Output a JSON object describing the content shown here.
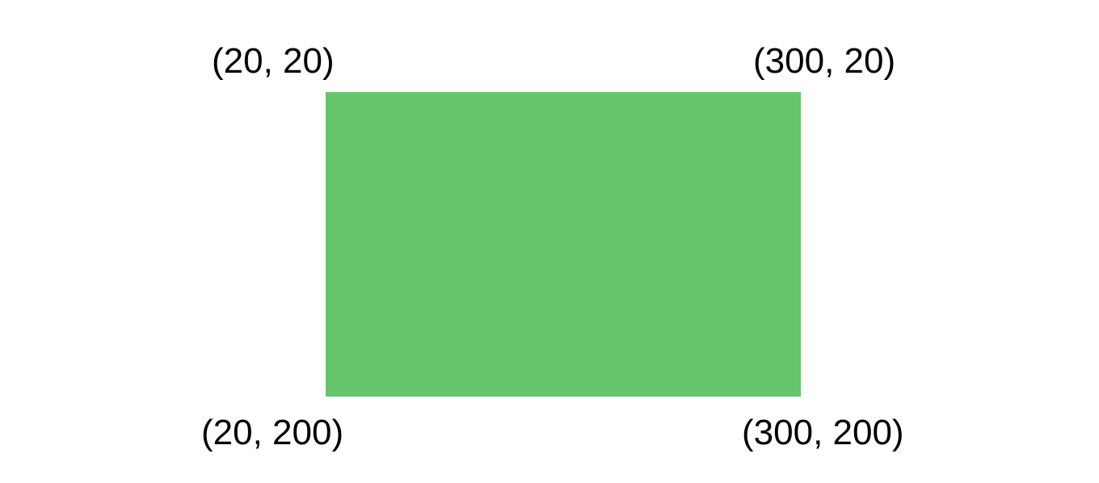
{
  "diagram": {
    "rectangle": {
      "fill_color": "#66c56a"
    },
    "corners": {
      "top_left": "(20, 20)",
      "top_right": "(300, 20)",
      "bottom_left": "(20, 200)",
      "bottom_right": "(300, 200)"
    }
  }
}
